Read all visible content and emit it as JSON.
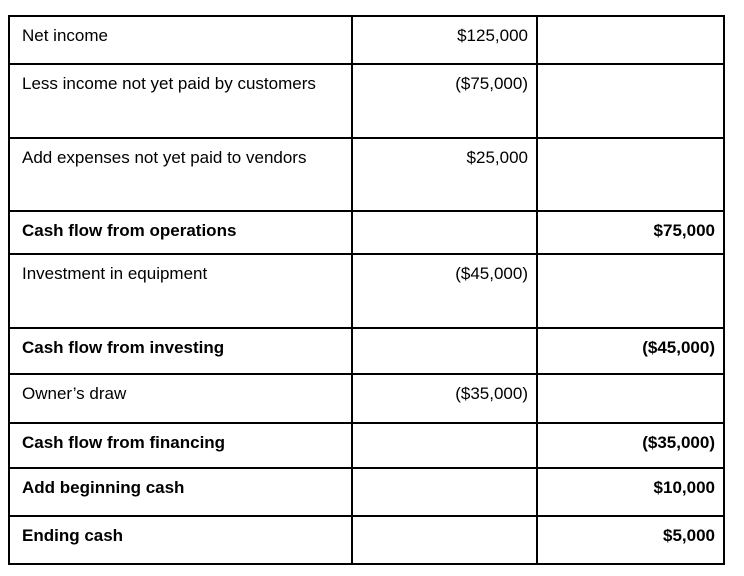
{
  "table": {
    "rows": [
      {
        "label": "Net income",
        "detail": "$125,000",
        "total": ""
      },
      {
        "label": "Less income not yet paid by customers",
        "detail": "($75,000)",
        "total": ""
      },
      {
        "label": "Add expenses not yet paid to vendors",
        "detail": "$25,000",
        "total": ""
      },
      {
        "label": "Cash flow from operations",
        "detail": "",
        "total": "$75,000"
      },
      {
        "label": "Investment in equipment",
        "detail": "($45,000)",
        "total": ""
      },
      {
        "label": "Cash flow from investing",
        "detail": "",
        "total": "($45,000)"
      },
      {
        "label": "Owner’s draw",
        "detail": "($35,000)",
        "total": ""
      },
      {
        "label": "Cash flow from financing",
        "detail": "",
        "total": "($35,000)"
      },
      {
        "label": "Add beginning cash",
        "detail": "",
        "total": "$10,000"
      },
      {
        "label": "Ending cash",
        "detail": "",
        "total": "$5,000"
      }
    ]
  }
}
